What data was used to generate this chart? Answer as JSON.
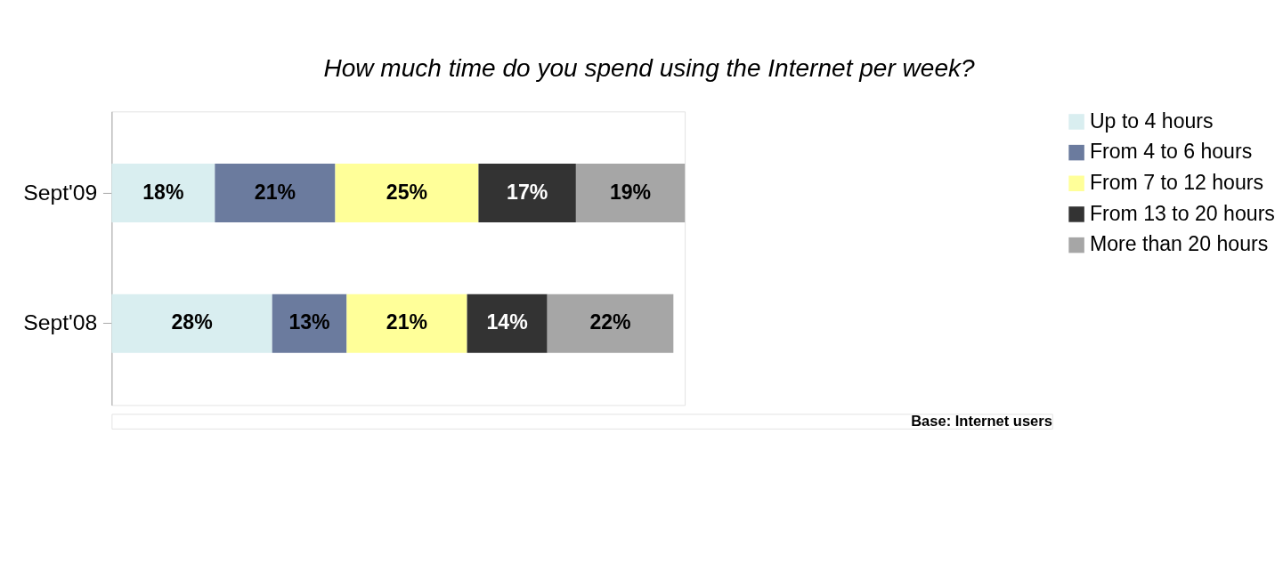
{
  "chart_data": {
    "type": "bar",
    "orientation": "horizontal",
    "stacked": true,
    "title": "How much time do you spend using the Internet per week?",
    "categories": [
      "Sept'09",
      "Sept'08"
    ],
    "series": [
      {
        "name": "Up to 4 hours",
        "color": "#d9eef0",
        "values": [
          18,
          28
        ],
        "value_labels": [
          "18%",
          "28%"
        ]
      },
      {
        "name": "From 4 to 6 hours",
        "color": "#6b7b9e",
        "values": [
          21,
          13
        ],
        "value_labels": [
          "21%",
          "13%"
        ]
      },
      {
        "name": "From 7 to 12 hours",
        "color": "#ffff99",
        "values": [
          25,
          21
        ],
        "value_labels": [
          "25%",
          "21%"
        ]
      },
      {
        "name": "From 13 to 20 hours",
        "color": "#333333",
        "values": [
          17,
          14
        ],
        "value_labels": [
          "17%",
          "14%"
        ]
      },
      {
        "name": "More than 20 hours",
        "color": "#a6a6a6",
        "values": [
          19,
          22
        ],
        "value_labels": [
          "19%",
          "22%"
        ]
      }
    ],
    "tick_labels": "y",
    "legend": "right",
    "annotations": [
      "Base: Internet users"
    ]
  }
}
